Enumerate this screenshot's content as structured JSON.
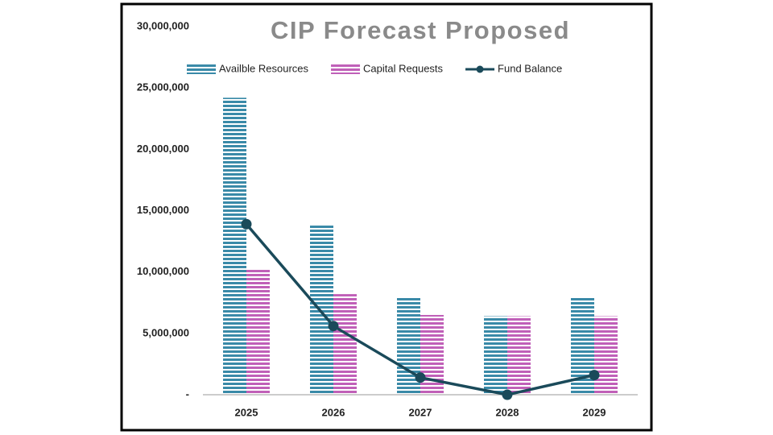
{
  "chart_data": {
    "type": "bar",
    "title": "CIP Forecast Proposed",
    "categories": [
      "2025",
      "2026",
      "2027",
      "2028",
      "2029"
    ],
    "series": [
      {
        "name": "Availble Resources",
        "color": "#3a8aa8",
        "type": "bar",
        "values": [
          24200000,
          13900000,
          8000000,
          6400000,
          8000000
        ]
      },
      {
        "name": "Capital Requests",
        "color": "#c060b8",
        "type": "bar",
        "values": [
          10300000,
          8200000,
          6500000,
          6400000,
          6400000
        ]
      },
      {
        "name": "Fund Balance",
        "color": "#1a4a5a",
        "type": "line",
        "values": [
          13900000,
          5600000,
          1400000,
          0,
          1600000
        ]
      }
    ],
    "ylim": [
      0,
      30000000
    ],
    "yticks": [
      {
        "value": 0,
        "label": "-"
      },
      {
        "value": 5000000,
        "label": "5,000,000"
      },
      {
        "value": 10000000,
        "label": "10,000,000"
      },
      {
        "value": 15000000,
        "label": "15,000,000"
      },
      {
        "value": 20000000,
        "label": "20,000,000"
      },
      {
        "value": 25000000,
        "label": "25,000,000"
      },
      {
        "value": 30000000,
        "label": "30,000,000"
      }
    ],
    "grid": false
  }
}
